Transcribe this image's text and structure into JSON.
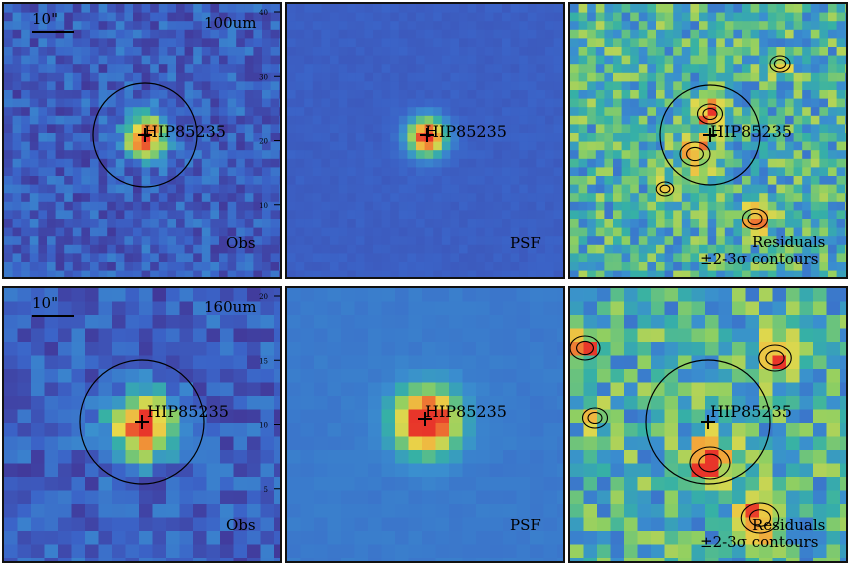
{
  "source_name": "HIP85235",
  "scale_bar_label": "10\"",
  "rows": [
    {
      "band": "100um",
      "panels": [
        {
          "kind": "Obs",
          "label": "Obs"
        },
        {
          "kind": "PSF",
          "label": "PSF"
        },
        {
          "kind": "Residuals",
          "label": "Residuals",
          "label2": "±2-3σ contours"
        }
      ],
      "tick_labels": [
        "40",
        "30",
        "20",
        "10"
      ]
    },
    {
      "band": "160um",
      "panels": [
        {
          "kind": "Obs",
          "label": "Obs"
        },
        {
          "kind": "PSF",
          "label": "PSF"
        },
        {
          "kind": "Residuals",
          "label": "Residuals",
          "label2": "±2-3σ contours"
        }
      ],
      "tick_labels": [
        "20",
        "15",
        "10",
        "5"
      ]
    }
  ],
  "colors": {
    "frame": "#111111",
    "psf_background": "#3b4fa6",
    "peak": "#e8352a",
    "colormap": [
      "#3a0f6e",
      "#413b9c",
      "#3b64c8",
      "#3a8fcf",
      "#36b1a5",
      "#8ecf62",
      "#e8d84a",
      "#f2a53a",
      "#e8352a"
    ]
  }
}
